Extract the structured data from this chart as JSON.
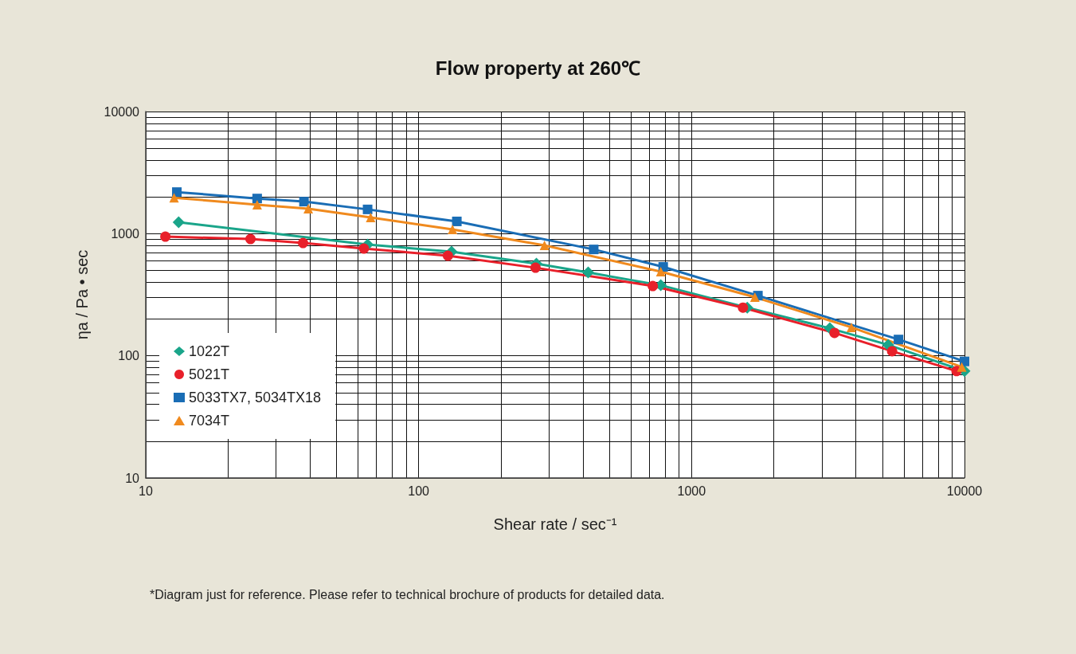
{
  "chart_data": {
    "type": "line",
    "title": "Flow property at 260℃",
    "xlabel": "Shear rate / sec⁻¹",
    "ylabel": "ηa / Pa • sec",
    "annotations": [
      "*Diagram just for reference. Please refer to technical brochure of products for detailed data."
    ],
    "log": "xy",
    "xlim": [
      10,
      10000
    ],
    "xticks": [
      10,
      100,
      1000,
      10000
    ],
    "ylim": [
      10,
      10000
    ],
    "yticks": [
      10,
      100,
      1000,
      10000
    ],
    "grid": true,
    "legend": "bottom left",
    "series": [
      {
        "name": "1022T",
        "color": "#1aa58a",
        "marker": "diamond",
        "x": [
          13.2,
          65,
          132,
          270,
          418,
          771,
          1600,
          3210,
          5250,
          10000
        ],
        "values": [
          1240,
          815,
          712,
          568,
          481,
          378,
          248,
          168,
          123,
          75
        ]
      },
      {
        "name": "5021T",
        "color": "#e8202a",
        "marker": "circle",
        "x": [
          11.8,
          24.2,
          37.7,
          63,
          128,
          268,
          721,
          1543,
          3340,
          5430,
          9350
        ],
        "values": [
          946,
          904,
          839,
          755,
          659,
          526,
          373,
          248,
          154,
          109,
          75
        ]
      },
      {
        "name": "5033TX7, 5034TX18",
        "color": "#1a6db5",
        "marker": "square",
        "x": [
          13,
          25.6,
          38,
          65,
          138,
          438,
          787,
          1750,
          5730,
          10000
        ],
        "values": [
          2190,
          1940,
          1830,
          1580,
          1260,
          743,
          535,
          311,
          136,
          90
        ]
      },
      {
        "name": "7034T",
        "color": "#f08a1e",
        "marker": "triangle",
        "x": [
          12.7,
          25.6,
          39.4,
          66.7,
          133,
          289,
          771,
          1706,
          3850,
          9770
        ],
        "values": [
          1970,
          1725,
          1600,
          1355,
          1083,
          802,
          489,
          302,
          171,
          81
        ]
      }
    ]
  }
}
